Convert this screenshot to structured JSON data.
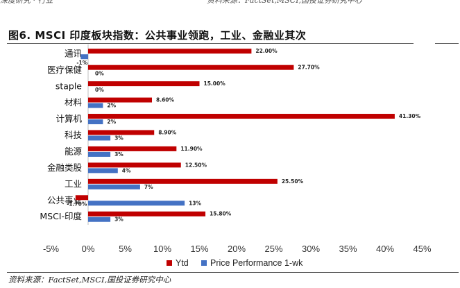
{
  "header_cut": {
    "left": "深度研究 · 行业",
    "right": "资料来源：FactSet,MSCI,国投证券研究中心"
  },
  "figure_title": "图6. MSCI 印度板块指数：公共事业领跑，工业、金融业其次",
  "source": "资料来源：FactSet,MSCI,国投证券研究中心",
  "colors": {
    "ytd": "#C00000",
    "weekly": "#4472C4"
  },
  "chart_data": {
    "type": "bar",
    "orientation": "horizontal",
    "categories": [
      "通讯",
      "医疗保健",
      "staple",
      "材料",
      "计算机",
      "科技",
      "能源",
      "金融类股",
      "工业",
      "公共事业",
      "MSCI-印度"
    ],
    "series": [
      {
        "name": "Ytd",
        "values": [
          22.0,
          27.7,
          15.0,
          8.6,
          41.3,
          8.9,
          11.9,
          12.5,
          25.5,
          -1.7,
          15.8
        ],
        "labels": [
          "22.00%",
          "27.70%",
          "15.00%",
          "8.60%",
          "41.30%",
          "8.90%",
          "11.90%",
          "12.50%",
          "25.50%",
          "-1.70%",
          "15.80%"
        ]
      },
      {
        "name": "Price Performance 1-wk",
        "values": [
          -1,
          0,
          0,
          2,
          2,
          3,
          3,
          4,
          7,
          13,
          3
        ],
        "labels": [
          "-1%",
          "0%",
          "0%",
          "2%",
          "2%",
          "3%",
          "3%",
          "4%",
          "7%",
          "13%",
          "3%"
        ]
      }
    ],
    "xlim": [
      -5,
      45
    ],
    "xticks": [
      -5,
      0,
      5,
      10,
      15,
      20,
      25,
      30,
      35,
      40,
      45
    ],
    "xtick_labels": [
      "-5%",
      "0%",
      "5%",
      "10%",
      "15%",
      "20%",
      "25%",
      "30%",
      "35%",
      "40%",
      "45%"
    ],
    "legend_position": "bottom",
    "grid": false
  }
}
